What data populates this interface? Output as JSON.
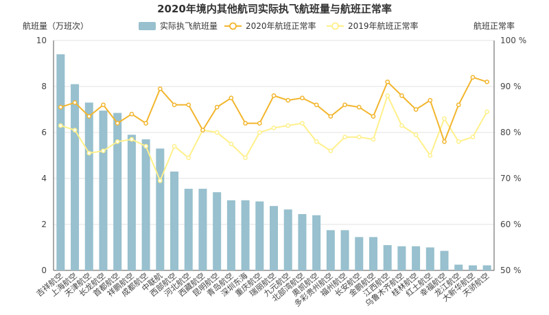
{
  "chart_data": {
    "type": "bar",
    "title": "2020年境内其他航司实际执飞航班量与航班正常率",
    "ylabel_left": "航班量（万班次）",
    "ylabel_right": "航班正常率",
    "ylim_left": [
      0,
      10
    ],
    "ylim_right": [
      50,
      100
    ],
    "left_ticks": [
      "0",
      "2",
      "4",
      "6",
      "8",
      "10"
    ],
    "right_ticks": [
      "50 %",
      "60 %",
      "70 %",
      "80 %",
      "90 %",
      "100 %"
    ],
    "grid": true,
    "legend_position": "top-center",
    "categories": [
      "吉祥航空",
      "上海航空",
      "天津航空",
      "长龙航空",
      "首都航空",
      "祥鹏航空",
      "成都航空",
      "中联航",
      "西部航空",
      "河北航空",
      "西藏航空",
      "昆明航空",
      "青岛航空",
      "深圳东海",
      "重庆航空",
      "瑞丽航空",
      "九元航空",
      "北部湾航空",
      "奥凯航空",
      "多彩贵州航空",
      "福州航空",
      "长安航空",
      "金鹏航空",
      "江西航空",
      "乌鲁木齐航空",
      "桂林航空",
      "红土航空",
      "幸福航空",
      "龙江航空",
      "大新华航空",
      "天骄航空"
    ],
    "series": [
      {
        "name": "实际执飞航班量",
        "type": "bar",
        "axis": "left",
        "color": "#98c0ce",
        "values": [
          9.4,
          8.1,
          7.3,
          6.95,
          6.85,
          5.9,
          5.7,
          5.3,
          4.3,
          3.55,
          3.55,
          3.4,
          3.05,
          3.05,
          3.0,
          2.8,
          2.65,
          2.45,
          2.4,
          1.75,
          1.75,
          1.45,
          1.45,
          1.1,
          1.05,
          1.05,
          1.0,
          0.85,
          0.25,
          0.22,
          0.22
        ]
      },
      {
        "name": "2020年航班正常率",
        "type": "line",
        "axis": "right",
        "color": "#f2b52c",
        "values": [
          85.5,
          86.5,
          83.5,
          86.0,
          82.0,
          84.0,
          82.0,
          89.5,
          86.0,
          86.0,
          80.5,
          85.5,
          87.5,
          82.0,
          82.0,
          88.0,
          87.0,
          87.5,
          86.0,
          83.5,
          86.0,
          85.5,
          83.5,
          91.0,
          88.0,
          85.0,
          87.0,
          78.0,
          86.0,
          92.0,
          91.0
        ]
      },
      {
        "name": "2019年航班正常率",
        "type": "line",
        "axis": "right",
        "color": "#fff08a",
        "values": [
          81.5,
          80.5,
          75.5,
          76.0,
          78.0,
          78.5,
          77.0,
          69.5,
          77.0,
          74.5,
          80.5,
          80.0,
          77.5,
          74.5,
          80.0,
          81.0,
          81.5,
          82.0,
          78.0,
          76.0,
          79.0,
          79.0,
          78.5,
          88.0,
          81.5,
          79.5,
          75.0,
          83.0,
          78.0,
          79.0,
          84.5
        ]
      }
    ]
  }
}
